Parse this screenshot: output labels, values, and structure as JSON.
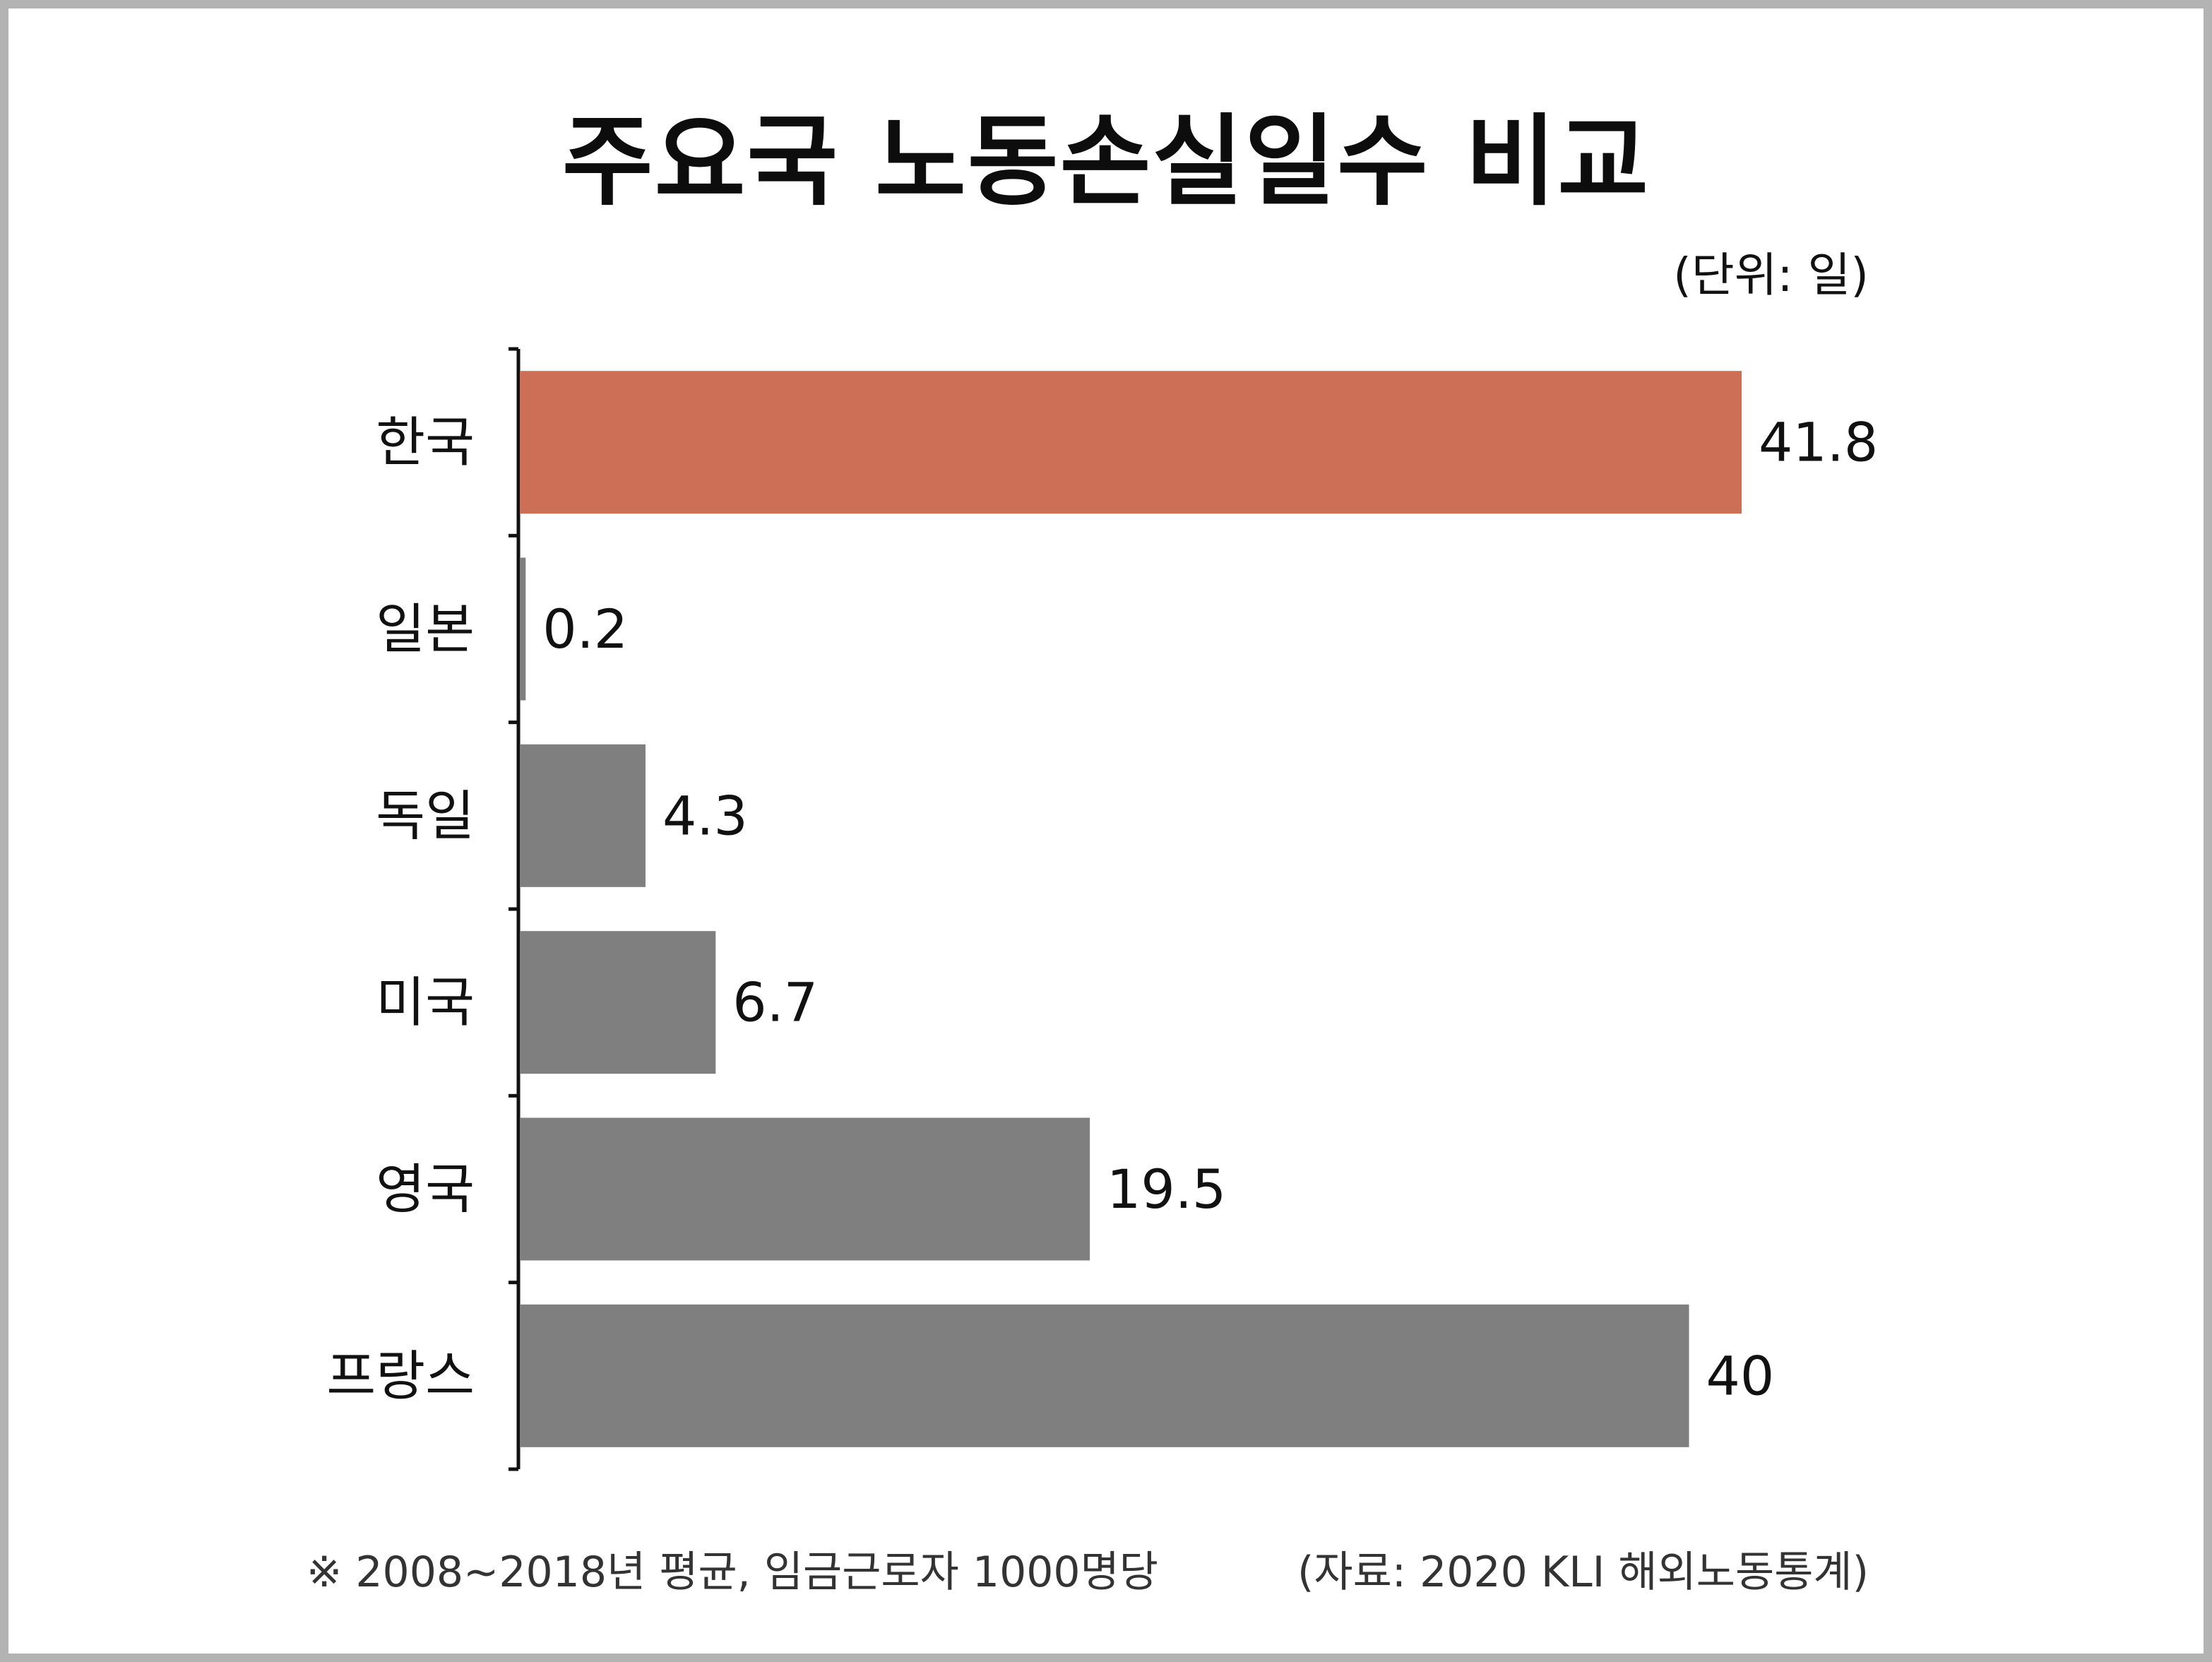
{
  "colors": {
    "highlight": "#cd6e56",
    "default_bar": "#7f7f7f",
    "axis": "#111111",
    "frame": "#b3b3b3"
  },
  "chart_data": {
    "type": "bar",
    "orientation": "horizontal",
    "title": "주요국 노동손실일수 비교",
    "unit_label": "(단위: 일)",
    "categories": [
      "한국",
      "일본",
      "독일",
      "미국",
      "영국",
      "프랑스"
    ],
    "values": [
      41.8,
      0.2,
      4.3,
      6.7,
      19.5,
      40
    ],
    "value_labels": [
      "41.8",
      "0.2",
      "4.3",
      "6.7",
      "19.5",
      "40"
    ],
    "highlight_category": "한국",
    "xlim": [
      0,
      41.8
    ],
    "grid": false,
    "legend": "none"
  },
  "footnote": "※ 2008~2018년 평균, 임금근로자 1000명당",
  "source": "(자료: 2020 KLI 해외노동통계)"
}
